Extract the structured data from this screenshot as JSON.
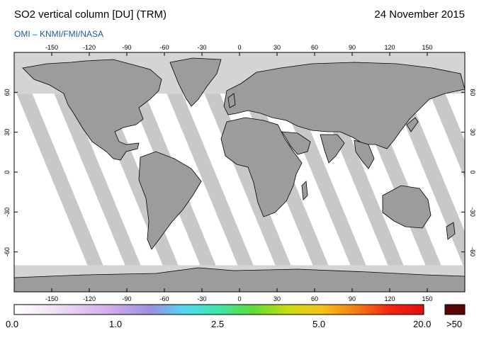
{
  "header": {
    "title": "SO2 vertical column [DU] (TRM)",
    "date": "24 November 2015",
    "credit": "OMI  –  KNMI/FMI/NASA"
  },
  "map": {
    "projection": "equirectangular",
    "lon_range": [
      -180,
      180
    ],
    "lat_range": [
      -90,
      90
    ],
    "lon_ticks": [
      -150,
      -120,
      -90,
      -60,
      -30,
      0,
      30,
      60,
      90,
      120,
      150
    ],
    "lat_ticks": [
      60,
      30,
      0,
      -30,
      -60
    ],
    "no_data_color": "#d4d4d4",
    "swath_color": "#c8c8c8",
    "continent_color": "#9c9c9c",
    "coast_color": "#000000",
    "data_coverage_lat": [
      -70,
      59
    ],
    "swath_start_lons": [
      -178,
      -148,
      -118,
      -88,
      -58,
      -28,
      2,
      32,
      62,
      92,
      122,
      152
    ]
  },
  "colorbar": {
    "stops": [
      "#ffffff",
      "#f3e6f6",
      "#e3c6ef",
      "#cba6ea",
      "#9d8ee2",
      "#4fd9f2",
      "#3fe6a6",
      "#5edc35",
      "#c8dc12",
      "#f6c318",
      "#f67d12",
      "#f22610",
      "#dd1010"
    ],
    "overflow_color": "#5a0505",
    "labels": [
      "0.0",
      "1.0",
      "2.5",
      "5.0",
      "20.0",
      ">50"
    ]
  }
}
